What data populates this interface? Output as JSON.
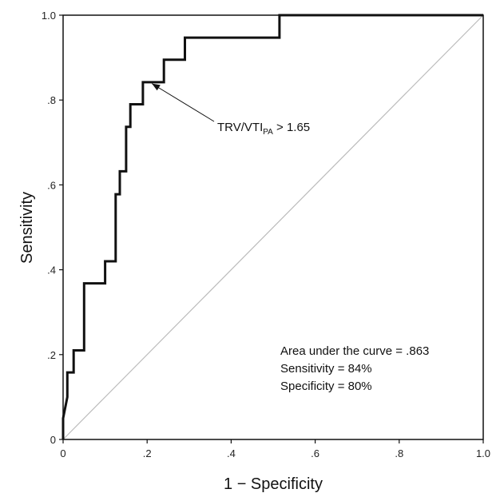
{
  "chart_data": {
    "type": "line",
    "xlabel": "1 − Specificity",
    "ylabel": "Sensitivity",
    "xlim": [
      0,
      1
    ],
    "ylim": [
      0,
      1
    ],
    "x_ticks": [
      {
        "value": 0,
        "label": "0"
      },
      {
        "value": 0.2,
        "label": ".2"
      },
      {
        "value": 0.4,
        "label": ".4"
      },
      {
        "value": 0.6,
        "label": ".6"
      },
      {
        "value": 0.8,
        "label": ".8"
      },
      {
        "value": 1.0,
        "label": "1.0"
      }
    ],
    "y_ticks": [
      {
        "value": 0,
        "label": "0"
      },
      {
        "value": 0.2,
        "label": ".2"
      },
      {
        "value": 0.4,
        "label": ".4"
      },
      {
        "value": 0.6,
        "label": ".6"
      },
      {
        "value": 0.8,
        "label": ".8"
      },
      {
        "value": 1.0,
        "label": "1.0"
      }
    ],
    "series": [
      {
        "color": "#111111",
        "step": true,
        "points": [
          [
            0.0,
            0.0
          ],
          [
            0.0,
            0.05
          ],
          [
            0.01,
            0.1
          ],
          [
            0.01,
            0.158
          ],
          [
            0.025,
            0.158
          ],
          [
            0.025,
            0.21
          ],
          [
            0.05,
            0.21
          ],
          [
            0.05,
            0.368
          ],
          [
            0.1,
            0.368
          ],
          [
            0.1,
            0.42
          ],
          [
            0.125,
            0.42
          ],
          [
            0.125,
            0.578
          ],
          [
            0.135,
            0.578
          ],
          [
            0.135,
            0.632
          ],
          [
            0.15,
            0.632
          ],
          [
            0.15,
            0.737
          ],
          [
            0.16,
            0.737
          ],
          [
            0.16,
            0.79
          ],
          [
            0.19,
            0.79
          ],
          [
            0.19,
            0.842
          ],
          [
            0.24,
            0.842
          ],
          [
            0.24,
            0.895
          ],
          [
            0.29,
            0.895
          ],
          [
            0.29,
            0.947
          ],
          [
            0.515,
            0.947
          ],
          [
            0.515,
            1.0
          ],
          [
            1.0,
            1.0
          ]
        ]
      }
    ],
    "reference_line": {
      "color": "#bbbbbb",
      "points": [
        [
          0,
          0
        ],
        [
          1,
          1
        ]
      ]
    },
    "cutoff_annotation": {
      "text_main": "TRV/VTI",
      "text_sub": "PA",
      "text_tail": " > 1.65",
      "point": [
        0.2,
        0.835
      ]
    },
    "stats_text": [
      "Area under the curve  = .863",
      "Sensitivity = 84%",
      "Specificity = 80%"
    ],
    "grid": false
  }
}
